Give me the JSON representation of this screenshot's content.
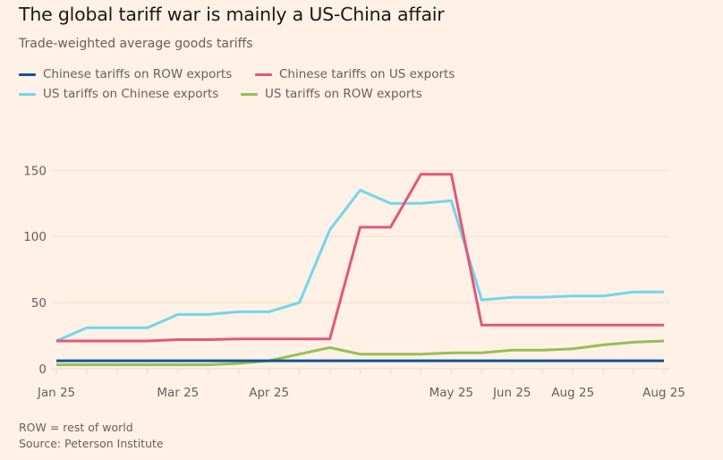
{
  "header": {
    "title": "The global tariff war is mainly a US-China affair",
    "subtitle": "Trade-weighted average goods tariffs"
  },
  "footer": {
    "note": "ROW = rest of world",
    "source": "Source: Peterson Institute"
  },
  "chart_data": {
    "type": "line",
    "title": "The global tariff war is mainly a US-China affair",
    "subtitle": "Trade-weighted average goods tariffs",
    "xlabel": "",
    "ylabel": "",
    "ylim": [
      0,
      155
    ],
    "yticks": [
      0,
      50,
      100,
      150
    ],
    "ytick_labels": [
      "0",
      "50",
      "100",
      "150"
    ],
    "grid": true,
    "legend_position": "top-left",
    "x_count": 21,
    "xtick_labels": [
      {
        "index": 0,
        "label": "Jan 25"
      },
      {
        "index": 4,
        "label": "Mar 25"
      },
      {
        "index": 7,
        "label": "Apr 25"
      },
      {
        "index": 13,
        "label": "May 25"
      },
      {
        "index": 15,
        "label": "Jun 25"
      },
      {
        "index": 17,
        "label": "Aug 25"
      },
      {
        "index": 20,
        "label": "Aug 25"
      }
    ],
    "series": [
      {
        "name": "Chinese tariffs on ROW exports",
        "color": "#0f5499",
        "values": [
          6,
          6,
          6,
          6,
          6,
          6,
          6,
          6,
          6,
          6,
          6,
          6,
          6,
          6,
          6,
          6,
          6,
          6,
          6,
          6,
          6
        ]
      },
      {
        "name": "Chinese tariffs on US exports",
        "color": "#e3577a",
        "values": [
          21,
          21,
          21,
          21,
          22,
          22,
          22.5,
          22.5,
          22.5,
          22.5,
          107,
          107,
          147,
          147,
          33,
          33,
          33,
          33,
          33,
          33,
          33
        ]
      },
      {
        "name": "US tariffs on Chinese exports",
        "color": "#72d6ec",
        "values": [
          21,
          31,
          31,
          31,
          41,
          41,
          43,
          43,
          50,
          105,
          135,
          125,
          125,
          127,
          52,
          54,
          54,
          55,
          55,
          58,
          58
        ]
      },
      {
        "name": "US tariffs on ROW exports",
        "color": "#96bf56",
        "values": [
          3,
          3,
          3,
          3,
          3,
          3,
          4,
          6,
          11,
          16,
          11,
          11,
          11,
          12,
          12,
          14,
          14,
          15,
          18,
          20,
          21
        ]
      }
    ],
    "legend": [
      {
        "label": "Chinese tariffs on ROW exports",
        "color": "#0f5499"
      },
      {
        "label": "Chinese tariffs on US exports",
        "color": "#e3577a"
      },
      {
        "label": "US tariffs on Chinese exports",
        "color": "#72d6ec"
      },
      {
        "label": "US tariffs on ROW exports",
        "color": "#96bf56"
      }
    ]
  }
}
